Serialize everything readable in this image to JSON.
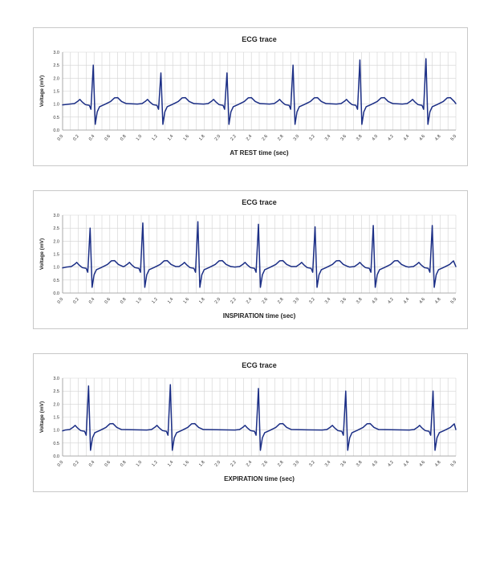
{
  "chart_data": [
    {
      "type": "line",
      "title": "ECG trace",
      "xlabel": "AT REST time (sec)",
      "ylabel": "Voltage (mV)",
      "xlim": [
        0,
        5.0
      ],
      "ylim": [
        0,
        3.0
      ],
      "xticks": [
        "0.0",
        "0.2",
        "0.4",
        "0.6",
        "0.8",
        "1.0",
        "1.2",
        "1.4",
        "1.6",
        "1.8",
        "2.0",
        "2.2",
        "2.4",
        "2.6",
        "2.8",
        "3.0",
        "3.2",
        "3.4",
        "3.6",
        "3.8",
        "4.0",
        "4.2",
        "4.4",
        "4.6",
        "4.8",
        "5.0"
      ],
      "yticks": [
        "0.0",
        "0.5",
        "1.0",
        "1.5",
        "2.0",
        "2.5",
        "3.0"
      ],
      "grid": true,
      "series": [
        {
          "values_type": "r_peak_times_and_amplitudes",
          "r_peaks": [
            [
              0.39,
              2.5
            ],
            [
              1.25,
              2.2
            ],
            [
              2.09,
              2.2
            ],
            [
              2.93,
              2.5
            ],
            [
              3.78,
              2.7
            ],
            [
              4.62,
              2.75
            ]
          ]
        }
      ]
    },
    {
      "type": "line",
      "title": "ECG trace",
      "xlabel": "INSPIRATION time (sec)",
      "ylabel": "Voltage (mV)",
      "xlim": [
        0,
        5.0
      ],
      "ylim": [
        0,
        3.0
      ],
      "xticks": [
        "0.0",
        "0.2",
        "0.4",
        "0.6",
        "0.8",
        "1.0",
        "1.2",
        "1.4",
        "1.6",
        "1.8",
        "2.0",
        "2.2",
        "2.4",
        "2.6",
        "2.8",
        "3.0",
        "3.2",
        "3.4",
        "3.6",
        "3.8",
        "4.0",
        "4.2",
        "4.4",
        "4.6",
        "4.8",
        "5.0"
      ],
      "yticks": [
        "0.0",
        "0.5",
        "1.0",
        "1.5",
        "2.0",
        "2.5",
        "3.0"
      ],
      "grid": true,
      "series": [
        {
          "values_type": "r_peak_times_and_amplitudes",
          "r_peaks": [
            [
              0.35,
              2.5
            ],
            [
              1.02,
              2.7
            ],
            [
              1.72,
              2.75
            ],
            [
              2.49,
              2.65
            ],
            [
              3.21,
              2.55
            ],
            [
              3.95,
              2.6
            ],
            [
              4.7,
              2.6
            ]
          ]
        }
      ]
    },
    {
      "type": "line",
      "title": "ECG trace",
      "xlabel": "EXPIRATION time (sec)",
      "ylabel": "Voltage (mV)",
      "xlim": [
        0,
        5.0
      ],
      "ylim": [
        0,
        3.0
      ],
      "xticks": [
        "0.0",
        "0.2",
        "0.4",
        "0.6",
        "0.8",
        "1.0",
        "1.2",
        "1.4",
        "1.6",
        "1.8",
        "2.0",
        "2.2",
        "2.4",
        "2.6",
        "2.8",
        "3.0",
        "3.2",
        "3.4",
        "3.6",
        "3.8",
        "4.0",
        "4.2",
        "4.4",
        "4.6",
        "4.8",
        "5.0"
      ],
      "yticks": [
        "0.0",
        "0.5",
        "1.0",
        "1.5",
        "2.0",
        "2.5",
        "3.0"
      ],
      "grid": true,
      "series": [
        {
          "values_type": "r_peak_times_and_amplitudes",
          "r_peaks": [
            [
              0.33,
              2.7
            ],
            [
              1.37,
              2.75
            ],
            [
              2.49,
              2.6
            ],
            [
              3.6,
              2.5
            ],
            [
              4.71,
              2.5
            ]
          ]
        }
      ]
    }
  ],
  "style": {
    "trace_color": "#1c2f86",
    "grid_color": "#d2d2d2",
    "border_color": "#c8c8c8"
  }
}
